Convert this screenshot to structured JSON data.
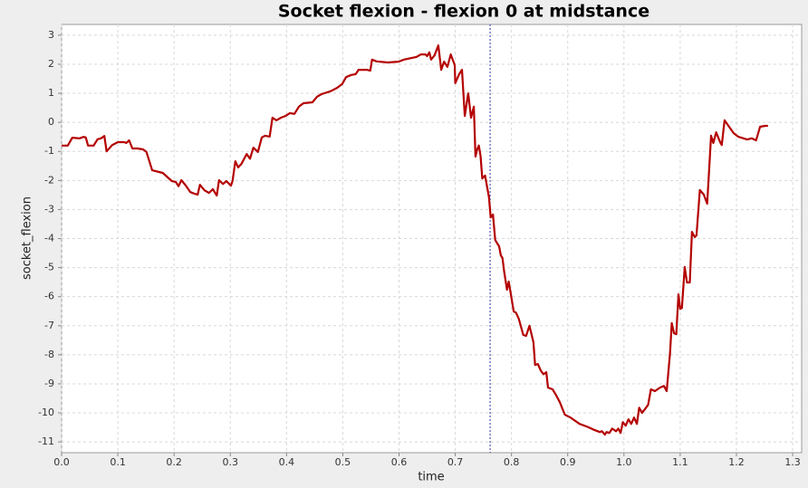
{
  "chart_data": {
    "type": "line",
    "title": "Socket flexion - flexion 0 at midstance",
    "x_label": "time",
    "y_label": "socket_flexion",
    "x": [
      0,
      0.011,
      0.019,
      0.032,
      0.039,
      0.043,
      0.047,
      0.057,
      0.064,
      0.07,
      0.076,
      0.08,
      0.09,
      0.1,
      0.111,
      0.115,
      0.12,
      0.126,
      0.135,
      0.145,
      0.151,
      0.161,
      0.18,
      0.196,
      0.203,
      0.208,
      0.213,
      0.221,
      0.229,
      0.237,
      0.242,
      0.246,
      0.254,
      0.262,
      0.269,
      0.272,
      0.276,
      0.28,
      0.287,
      0.293,
      0.301,
      0.304,
      0.309,
      0.314,
      0.32,
      0.329,
      0.335,
      0.341,
      0.349,
      0.356,
      0.362,
      0.37,
      0.375,
      0.382,
      0.39,
      0.398,
      0.406,
      0.414,
      0.422,
      0.43,
      0.446,
      0.454,
      0.462,
      0.478,
      0.49,
      0.499,
      0.506,
      0.515,
      0.523,
      0.528,
      0.543,
      0.549,
      0.552,
      0.56,
      0.58,
      0.599,
      0.609,
      0.623,
      0.631,
      0.639,
      0.647,
      0.65,
      0.654,
      0.657,
      0.663,
      0.67,
      0.675,
      0.68,
      0.686,
      0.692,
      0.699,
      0.7,
      0.707,
      0.712,
      0.717,
      0.723,
      0.728,
      0.733,
      0.736,
      0.739,
      0.742,
      0.745,
      0.748,
      0.753,
      0.76,
      0.763,
      0.767,
      0.771,
      0.778,
      0.781,
      0.784,
      0.787,
      0.792,
      0.795,
      0.799,
      0.804,
      0.808,
      0.813,
      0.821,
      0.826,
      0.832,
      0.839,
      0.842,
      0.847,
      0.852,
      0.857,
      0.862,
      0.865,
      0.873,
      0.879,
      0.886,
      0.891,
      0.895,
      0.905,
      0.921,
      0.934,
      0.945,
      0.957,
      0.961,
      0.966,
      0.969,
      0.974,
      0.979,
      0.986,
      0.99,
      0.994,
      0.998,
      1.003,
      1.008,
      1.013,
      1.018,
      1.023,
      1.027,
      1.032,
      1.037,
      1.043,
      1.048,
      1.055,
      1.064,
      1.071,
      1.076,
      1.082,
      1.085,
      1.089,
      1.093,
      1.097,
      1.1,
      1.103,
      1.108,
      1.112,
      1.117,
      1.121,
      1.126,
      1.129,
      1.135,
      1.142,
      1.148,
      1.155,
      1.159,
      1.164,
      1.171,
      1.174,
      1.179,
      1.187,
      1.195,
      1.203,
      1.219,
      1.227,
      1.235,
      1.242,
      1.251,
      1.256
    ],
    "series": [
      {
        "name": "socket_flexion",
        "color": "#b40000",
        "values": [
          -0.8,
          -0.8,
          -0.53,
          -0.55,
          -0.5,
          -0.52,
          -0.8,
          -0.8,
          -0.58,
          -0.55,
          -0.47,
          -1.0,
          -0.78,
          -0.68,
          -0.68,
          -0.71,
          -0.62,
          -0.9,
          -0.9,
          -0.93,
          -1.02,
          -1.65,
          -1.74,
          -2.02,
          -2.05,
          -2.2,
          -1.99,
          -2.18,
          -2.4,
          -2.46,
          -2.49,
          -2.15,
          -2.34,
          -2.43,
          -2.3,
          -2.4,
          -2.52,
          -1.99,
          -2.12,
          -2.02,
          -2.18,
          -2.02,
          -1.34,
          -1.55,
          -1.42,
          -1.09,
          -1.25,
          -0.87,
          -1.02,
          -0.52,
          -0.46,
          -0.49,
          0.16,
          0.07,
          0.16,
          0.22,
          0.32,
          0.29,
          0.54,
          0.66,
          0.69,
          0.88,
          0.97,
          1.07,
          1.19,
          1.32,
          1.56,
          1.63,
          1.66,
          1.81,
          1.81,
          1.78,
          2.16,
          2.1,
          2.06,
          2.09,
          2.16,
          2.22,
          2.25,
          2.34,
          2.34,
          2.28,
          2.41,
          2.16,
          2.3,
          2.65,
          1.81,
          2.09,
          1.91,
          2.34,
          1.97,
          1.35,
          1.66,
          1.81,
          0.22,
          1.0,
          0.16,
          0.54,
          -1.18,
          -0.93,
          -0.8,
          -1.15,
          -1.93,
          -1.83,
          -2.58,
          -3.27,
          -3.17,
          -4.05,
          -4.27,
          -4.58,
          -4.67,
          -5.14,
          -5.76,
          -5.48,
          -5.92,
          -6.51,
          -6.55,
          -6.76,
          -7.32,
          -7.35,
          -7.0,
          -7.57,
          -8.35,
          -8.32,
          -8.54,
          -8.67,
          -8.6,
          -9.13,
          -9.19,
          -9.38,
          -9.63,
          -9.88,
          -10.06,
          -10.16,
          -10.38,
          -10.47,
          -10.57,
          -10.66,
          -10.63,
          -10.75,
          -10.66,
          -10.69,
          -10.54,
          -10.63,
          -10.54,
          -10.69,
          -10.32,
          -10.44,
          -10.22,
          -10.38,
          -10.16,
          -10.38,
          -9.82,
          -10.0,
          -9.88,
          -9.72,
          -9.19,
          -9.25,
          -9.13,
          -9.07,
          -9.25,
          -7.94,
          -6.91,
          -7.26,
          -7.29,
          -5.92,
          -6.42,
          -6.39,
          -4.98,
          -5.51,
          -5.51,
          -3.77,
          -3.95,
          -3.89,
          -2.33,
          -2.49,
          -2.8,
          -0.46,
          -0.71,
          -0.34,
          -0.68,
          -0.78,
          0.07,
          -0.15,
          -0.37,
          -0.49,
          -0.59,
          -0.55,
          -0.62,
          -0.15,
          -0.12,
          -0.12
        ]
      }
    ],
    "marker_x": 0.762,
    "marker_color": "#3333aa",
    "xlim": [
      0,
      1.316
    ],
    "ylim": [
      -11.37,
      3.37
    ],
    "xticks": [
      {
        "value": 0,
        "label": "0.0"
      },
      0.1,
      0.2,
      0.3,
      0.4,
      0.5,
      0.6,
      0.7,
      0.8,
      0.9,
      {
        "value": 1,
        "label": "1.0"
      },
      1.1,
      1.2,
      1.3
    ],
    "yticks": [
      -11,
      -10,
      -9,
      -8,
      -7,
      -6,
      -5,
      -4,
      -3,
      -2,
      -1,
      0,
      1,
      2,
      3
    ],
    "grid": true
  }
}
